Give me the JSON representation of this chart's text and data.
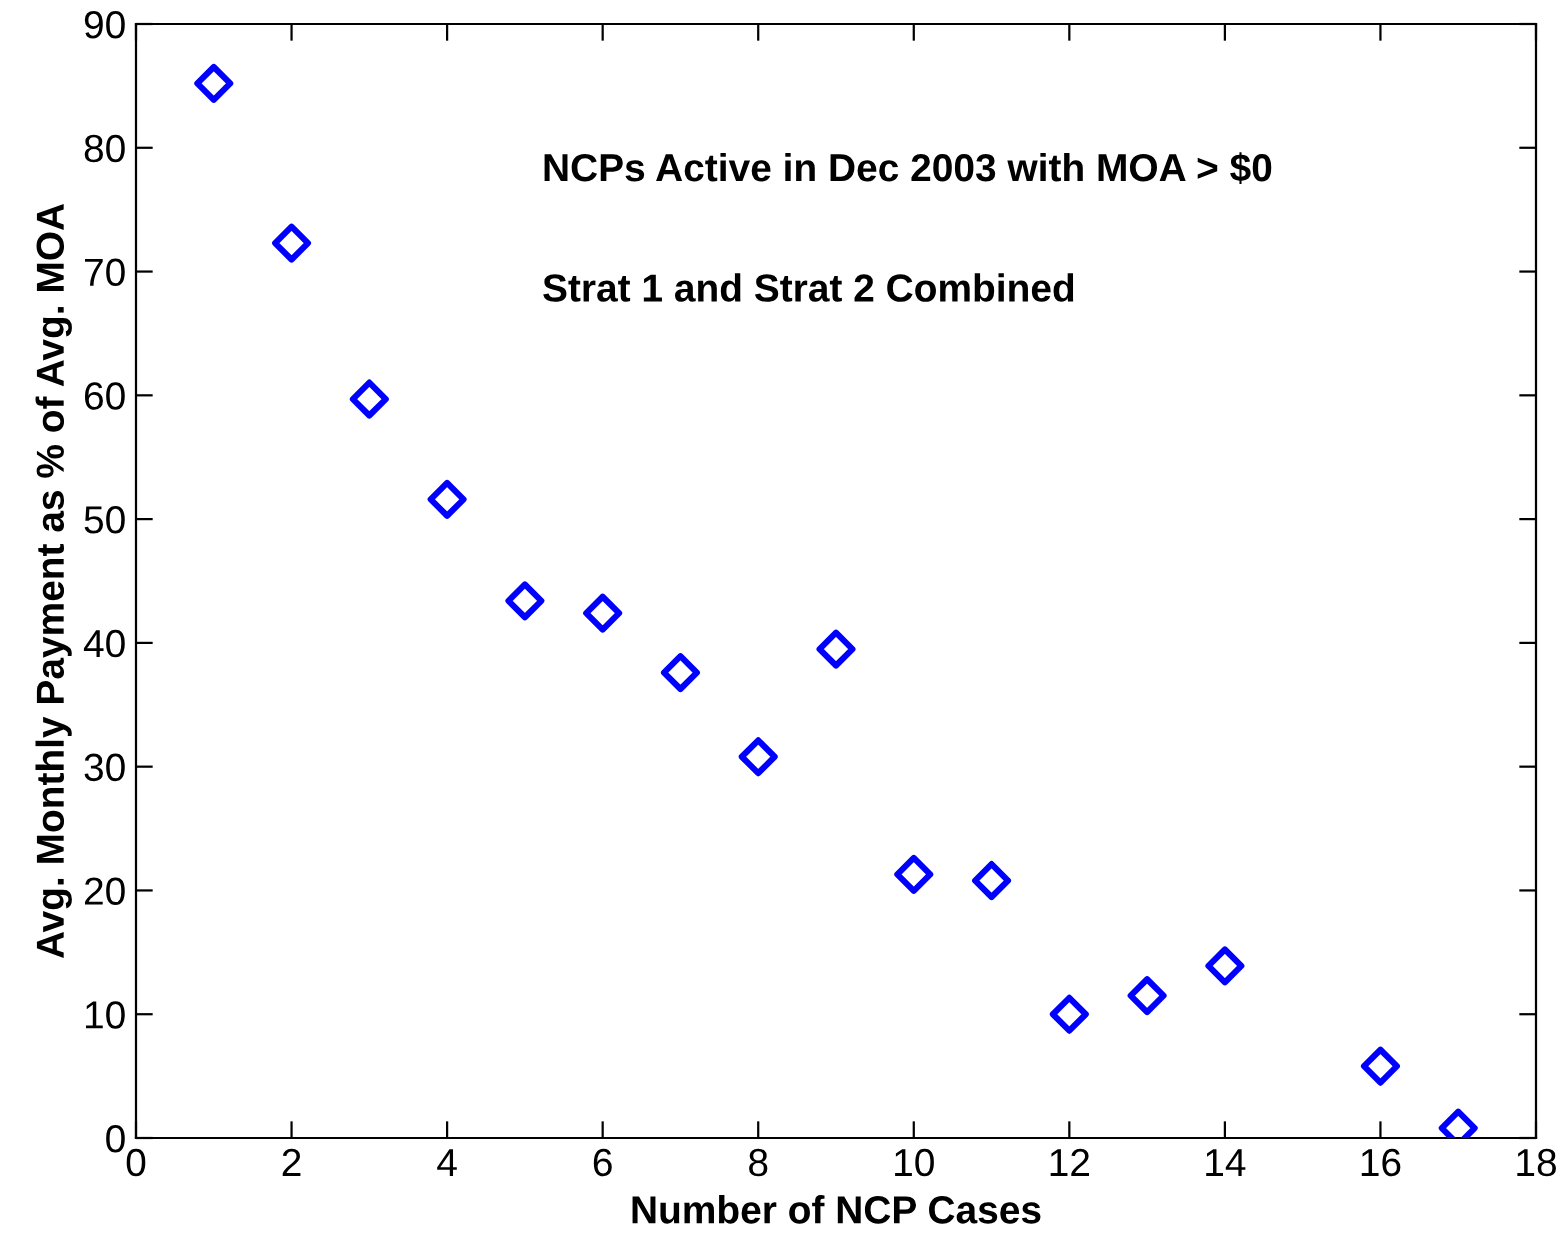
{
  "chart_data": {
    "type": "scatter",
    "xlabel": "Number of NCP Cases",
    "ylabel": "Avg. Monthly Payment as % of Avg. MOA",
    "annotations": [
      "NCPs Active in Dec 2003 with MOA > $0",
      "Strat 1 and Strat 2 Combined"
    ],
    "x": [
      1,
      2,
      3,
      4,
      5,
      6,
      7,
      8,
      9,
      10,
      11,
      12,
      13,
      14,
      16,
      17
    ],
    "series": [
      {
        "color": "#0000ff",
        "values": [
          85.2,
          72.3,
          59.7,
          51.6,
          43.4,
          42.4,
          37.6,
          30.8,
          39.5,
          21.3,
          20.8,
          10.0,
          11.5,
          13.9,
          5.8,
          0.8
        ]
      }
    ],
    "marker": "diamond",
    "xlim": [
      0,
      18
    ],
    "ylim": [
      0,
      90
    ],
    "xticks": [
      0,
      2,
      4,
      6,
      8,
      10,
      12,
      14,
      16,
      18
    ],
    "yticks": [
      0,
      10,
      20,
      30,
      40,
      50,
      60,
      70,
      80,
      90
    ],
    "grid": false,
    "legend": false
  }
}
